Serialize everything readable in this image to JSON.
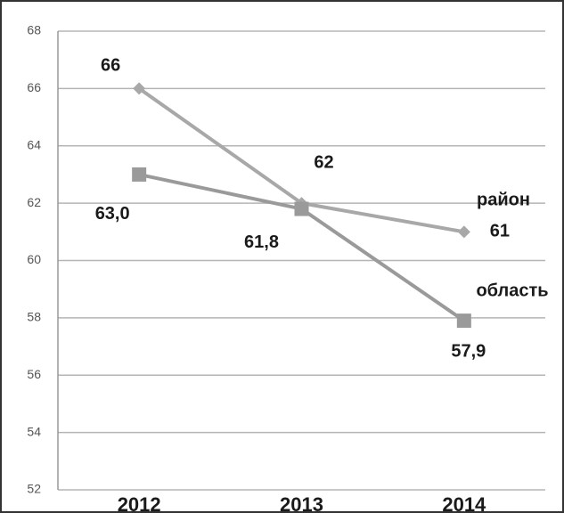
{
  "chart_data": {
    "type": "line",
    "categories": [
      "2012",
      "2013",
      "2014"
    ],
    "series": [
      {
        "name": "район",
        "color": "#a8a8a8",
        "marker": "diamond",
        "values": [
          66,
          62,
          61
        ]
      },
      {
        "name": "область",
        "color": "#9a9a9a",
        "marker": "square",
        "values": [
          63.0,
          61.8,
          57.9
        ],
        "value_labels": [
          "63,0",
          "61,8",
          "57,9"
        ]
      }
    ],
    "ylim": [
      52,
      68
    ],
    "yticks": [
      52,
      54,
      56,
      58,
      60,
      62,
      64,
      66,
      68
    ],
    "grid": true
  }
}
